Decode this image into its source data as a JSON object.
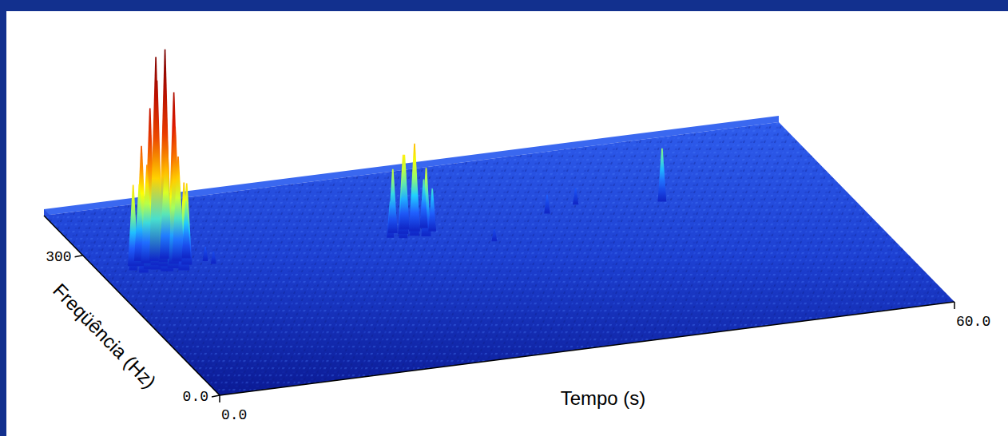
{
  "chart_data": {
    "type": "surface3d",
    "xlabel": "Tempo (s)",
    "ylabel": "Freqüência (Hz)",
    "xlim": [
      0,
      60
    ],
    "ylim": [
      0,
      385
    ],
    "zlim": [
      0,
      1
    ],
    "xticks": [
      {
        "value": 0,
        "label": "0.0"
      },
      {
        "value": 60,
        "label": "60.0"
      }
    ],
    "yticks": [
      {
        "value": 0,
        "label": "0.0"
      },
      300
    ],
    "peaks": {
      "time": [
        2.7,
        3.0,
        3.3,
        3.6,
        3.8,
        4.0,
        4.2,
        4.5,
        4.8,
        5.0,
        5.1,
        5.3,
        5.6,
        5.8,
        5.9,
        6.2,
        6.4,
        6.6,
        7.0,
        7.4,
        8.6,
        9.0,
        23.7,
        24.2,
        24.6,
        24.9,
        25.3,
        25.6,
        25.9,
        26.4,
        26.8,
        27.2,
        31.0,
        36.8,
        39.5,
        46.0
      ],
      "frequency": [
        262,
        270,
        255,
        268,
        278,
        260,
        272,
        258,
        266,
        274,
        252,
        262,
        270,
        256,
        276,
        264,
        250,
        268,
        260,
        272,
        262,
        255,
        262,
        270,
        258,
        266,
        274,
        260,
        268,
        256,
        272,
        264,
        230,
        270,
        280,
        265
      ],
      "amplitude": [
        0.22,
        0.37,
        0.3,
        0.55,
        0.35,
        0.74,
        0.45,
        0.67,
        0.85,
        0.94,
        0.6,
        0.89,
        0.98,
        0.81,
        0.5,
        0.63,
        0.4,
        0.48,
        0.37,
        0.26,
        0.06,
        0.05,
        0.16,
        0.29,
        0.25,
        0.36,
        0.34,
        0.3,
        0.4,
        0.31,
        0.22,
        0.19,
        0.05,
        0.08,
        0.07,
        0.24
      ]
    }
  }
}
